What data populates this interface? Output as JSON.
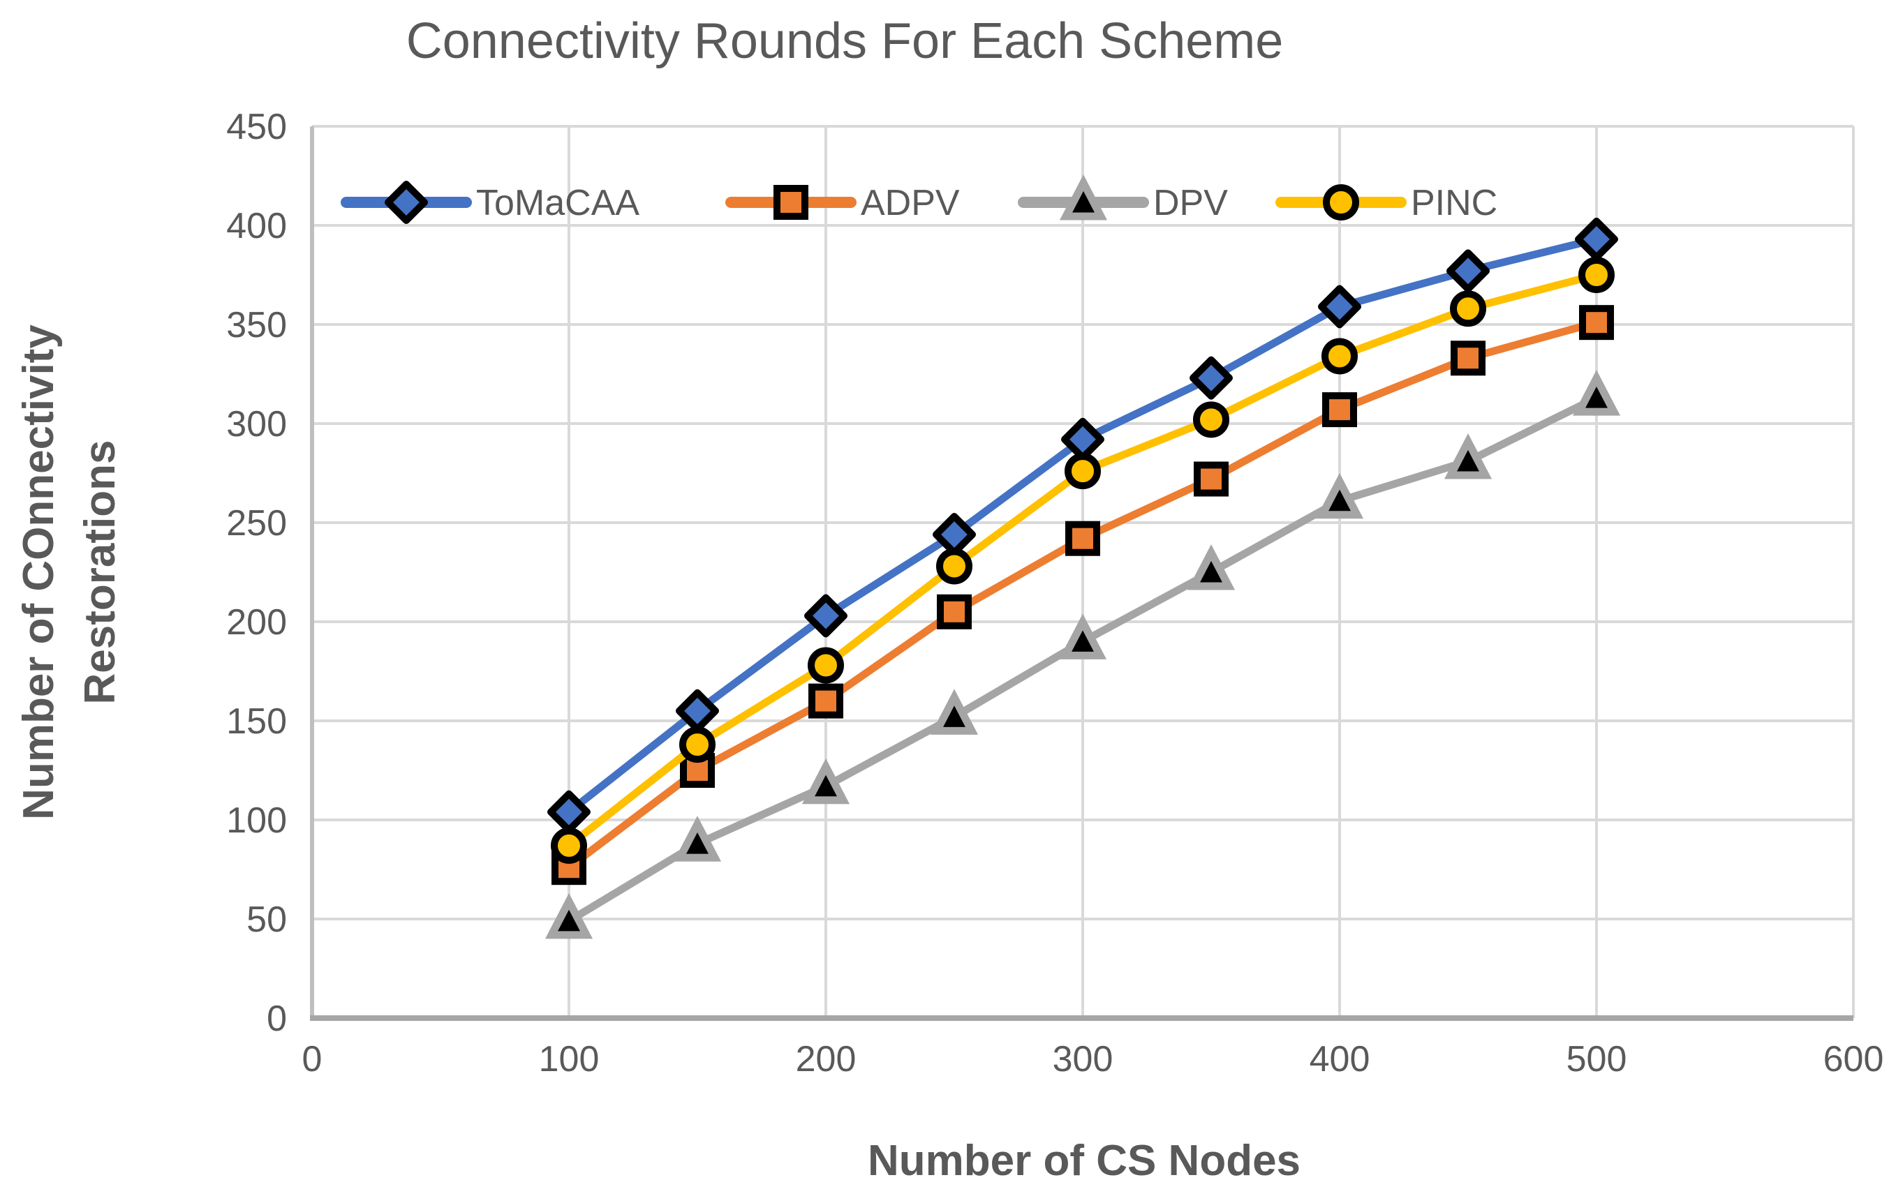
{
  "chart_data": {
    "type": "line",
    "title": "Connectivity Rounds For Each Scheme",
    "xlabel": "Number of CS Nodes",
    "ylabel_lines": [
      "Number of COnnectivity",
      "Restorations"
    ],
    "x": [
      100,
      150,
      200,
      250,
      300,
      350,
      400,
      450,
      500
    ],
    "series": [
      {
        "name": "ToMaCAA",
        "color": "#4472C4",
        "marker": "diamond",
        "values": [
          104,
          155,
          203,
          244,
          292,
          323,
          359,
          377,
          393
        ]
      },
      {
        "name": "ADPV",
        "color": "#ED7D31",
        "marker": "square",
        "values": [
          76,
          125,
          160,
          205,
          242,
          272,
          307,
          333,
          351
        ]
      },
      {
        "name": "DPV",
        "color": "#A5A5A5",
        "marker": "triangle",
        "values": [
          49,
          88,
          117,
          152,
          190,
          225,
          261,
          281,
          313
        ]
      },
      {
        "name": "PINC",
        "color": "#FFC000",
        "marker": "circle",
        "values": [
          87,
          138,
          178,
          228,
          276,
          302,
          334,
          358,
          375
        ]
      }
    ],
    "xlim": [
      0,
      600
    ],
    "ylim": [
      0,
      450
    ],
    "x_ticks": [
      0,
      100,
      200,
      300,
      400,
      500,
      600
    ],
    "y_ticks": [
      0,
      50,
      100,
      150,
      200,
      250,
      300,
      350,
      400,
      450
    ],
    "grid": true,
    "legend_position": "top-inside",
    "colors": {
      "grid": "#D9D9D9",
      "axis_y": "#BFBFBF",
      "axis_x": "#A6A6A6",
      "text": "#595959",
      "marker_outline": "#000000",
      "background": "#FFFFFF"
    }
  }
}
